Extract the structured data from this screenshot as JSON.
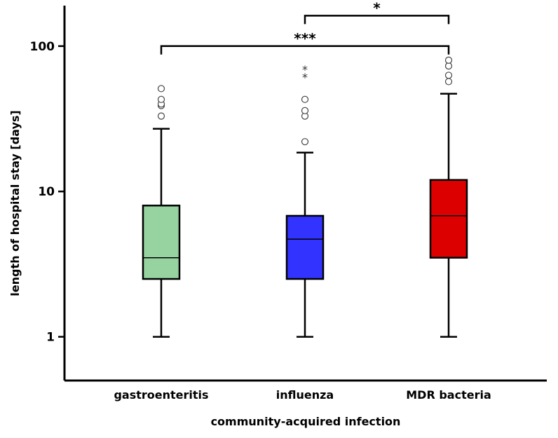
{
  "chart_data": {
    "type": "box",
    "title": "",
    "xlabel": "community-acquired infection",
    "ylabel": "length of hospital stay [days]",
    "yscale": "log",
    "ylim": [
      0.5,
      190
    ],
    "yticks": [
      1,
      10,
      100
    ],
    "ytick_labels": [
      "1",
      "10",
      "100"
    ],
    "grid": false,
    "categories": [
      "gastroenteritis",
      "influenza",
      "MDR bacteria"
    ],
    "boxes": [
      {
        "name": "gastroenteritis",
        "color": "#96d3a0",
        "whisker_low": 1,
        "q1": 2.5,
        "median": 3.5,
        "q3": 8,
        "whisker_high": 27,
        "outliers_circle": [
          33,
          39,
          40,
          43,
          51
        ],
        "outliers_star": []
      },
      {
        "name": "influenza",
        "color": "#3333ff",
        "whisker_low": 1,
        "q1": 2.5,
        "median": 4.7,
        "q3": 6.8,
        "whisker_high": 18.5,
        "outliers_circle": [
          22,
          33,
          36,
          43
        ],
        "outliers_star": [
          62,
          70
        ]
      },
      {
        "name": "MDR bacteria",
        "color": "#dd0000",
        "whisker_low": 1,
        "q1": 3.5,
        "median": 6.8,
        "q3": 12,
        "whisker_high": 47,
        "outliers_circle": [
          57,
          63,
          73,
          80
        ],
        "outliers_star": []
      }
    ],
    "significance": [
      {
        "from": 0,
        "to": 2,
        "y": 100,
        "label": "***"
      },
      {
        "from": 1,
        "to": 2,
        "y": 162,
        "label": "*"
      }
    ]
  }
}
